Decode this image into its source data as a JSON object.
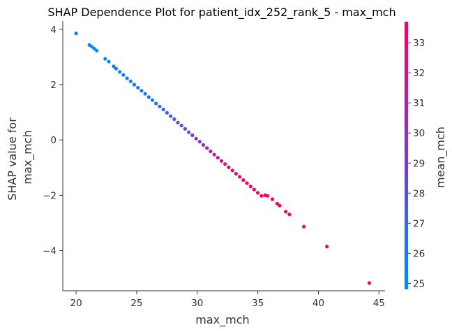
{
  "chart_data": {
    "type": "scatter",
    "title": "SHAP Dependence Plot for patient_idx_252_rank_5 - max_mch",
    "xlabel": "max_mch",
    "ylabel_line1": "SHAP value for",
    "ylabel_line2": "max_mch",
    "xlim": [
      18.9,
      45.5
    ],
    "ylim": [
      -5.45,
      4.3
    ],
    "x_ticks": [
      20,
      25,
      30,
      35,
      40,
      45
    ],
    "y_ticks": [
      4,
      2,
      0,
      -2,
      -4
    ],
    "y_tick_labels": [
      "4",
      "2",
      "0",
      "−2",
      "−4"
    ],
    "colorbar": {
      "label": "mean_mch",
      "min": 24.8,
      "max": 33.7,
      "ticks": [
        25,
        26,
        27,
        28,
        29,
        30,
        31,
        32,
        33
      ],
      "colors": [
        "#008afb",
        "#7b3ad1",
        "#ff0052"
      ]
    },
    "points": [
      {
        "x": 20.0,
        "y": 3.85,
        "c": 25.0
      },
      {
        "x": 21.1,
        "y": 3.43,
        "c": 25.0
      },
      {
        "x": 21.3,
        "y": 3.37,
        "c": 25.0
      },
      {
        "x": 21.5,
        "y": 3.3,
        "c": 25.0
      },
      {
        "x": 21.7,
        "y": 3.23,
        "c": 25.0
      },
      {
        "x": 22.4,
        "y": 2.93,
        "c": 25.1
      },
      {
        "x": 22.7,
        "y": 2.83,
        "c": 25.1
      },
      {
        "x": 23.1,
        "y": 2.66,
        "c": 25.2
      },
      {
        "x": 23.3,
        "y": 2.58,
        "c": 25.2
      },
      {
        "x": 23.6,
        "y": 2.46,
        "c": 25.3
      },
      {
        "x": 23.9,
        "y": 2.35,
        "c": 25.3
      },
      {
        "x": 24.2,
        "y": 2.23,
        "c": 25.4
      },
      {
        "x": 24.5,
        "y": 2.12,
        "c": 25.4
      },
      {
        "x": 24.8,
        "y": 2.0,
        "c": 25.5
      },
      {
        "x": 25.1,
        "y": 1.89,
        "c": 25.5
      },
      {
        "x": 25.4,
        "y": 1.78,
        "c": 25.6
      },
      {
        "x": 25.7,
        "y": 1.67,
        "c": 25.8
      },
      {
        "x": 26.0,
        "y": 1.55,
        "c": 26.0
      },
      {
        "x": 26.3,
        "y": 1.44,
        "c": 26.2
      },
      {
        "x": 26.6,
        "y": 1.32,
        "c": 26.4
      },
      {
        "x": 26.9,
        "y": 1.21,
        "c": 26.6
      },
      {
        "x": 27.2,
        "y": 1.1,
        "c": 26.8
      },
      {
        "x": 27.5,
        "y": 0.98,
        "c": 27.1
      },
      {
        "x": 27.8,
        "y": 0.86,
        "c": 27.4
      },
      {
        "x": 28.1,
        "y": 0.75,
        "c": 27.7
      },
      {
        "x": 28.4,
        "y": 0.63,
        "c": 28.0
      },
      {
        "x": 28.7,
        "y": 0.52,
        "c": 28.3
      },
      {
        "x": 29.0,
        "y": 0.4,
        "c": 28.6
      },
      {
        "x": 29.3,
        "y": 0.28,
        "c": 28.9
      },
      {
        "x": 29.6,
        "y": 0.17,
        "c": 29.2
      },
      {
        "x": 29.9,
        "y": 0.05,
        "c": 29.5
      },
      {
        "x": 30.2,
        "y": -0.06,
        "c": 29.9
      },
      {
        "x": 30.5,
        "y": -0.18,
        "c": 30.3
      },
      {
        "x": 30.8,
        "y": -0.29,
        "c": 30.7
      },
      {
        "x": 31.1,
        "y": -0.41,
        "c": 31.1
      },
      {
        "x": 31.4,
        "y": -0.53,
        "c": 31.4
      },
      {
        "x": 31.7,
        "y": -0.64,
        "c": 31.7
      },
      {
        "x": 32.0,
        "y": -0.76,
        "c": 32.0
      },
      {
        "x": 32.3,
        "y": -0.87,
        "c": 32.3
      },
      {
        "x": 32.6,
        "y": -0.99,
        "c": 32.5
      },
      {
        "x": 32.9,
        "y": -1.1,
        "c": 32.7
      },
      {
        "x": 33.2,
        "y": -1.22,
        "c": 32.9
      },
      {
        "x": 33.5,
        "y": -1.33,
        "c": 33.1
      },
      {
        "x": 33.8,
        "y": -1.45,
        "c": 33.2
      },
      {
        "x": 34.1,
        "y": -1.56,
        "c": 33.3
      },
      {
        "x": 34.4,
        "y": -1.68,
        "c": 33.4
      },
      {
        "x": 34.7,
        "y": -1.79,
        "c": 33.5
      },
      {
        "x": 35.0,
        "y": -1.91,
        "c": 33.5
      },
      {
        "x": 35.3,
        "y": -2.02,
        "c": 33.6
      },
      {
        "x": 35.6,
        "y": -2.0,
        "c": 33.6
      },
      {
        "x": 35.8,
        "y": -2.02,
        "c": 33.6
      },
      {
        "x": 36.2,
        "y": -2.14,
        "c": 33.6
      },
      {
        "x": 36.6,
        "y": -2.3,
        "c": 33.6
      },
      {
        "x": 36.8,
        "y": -2.37,
        "c": 33.6
      },
      {
        "x": 37.3,
        "y": -2.59,
        "c": 33.6
      },
      {
        "x": 37.6,
        "y": -2.69,
        "c": 33.6
      },
      {
        "x": 38.8,
        "y": -3.13,
        "c": 33.6
      },
      {
        "x": 40.7,
        "y": -3.85,
        "c": 33.6
      },
      {
        "x": 44.2,
        "y": -5.17,
        "c": 33.6
      }
    ]
  }
}
